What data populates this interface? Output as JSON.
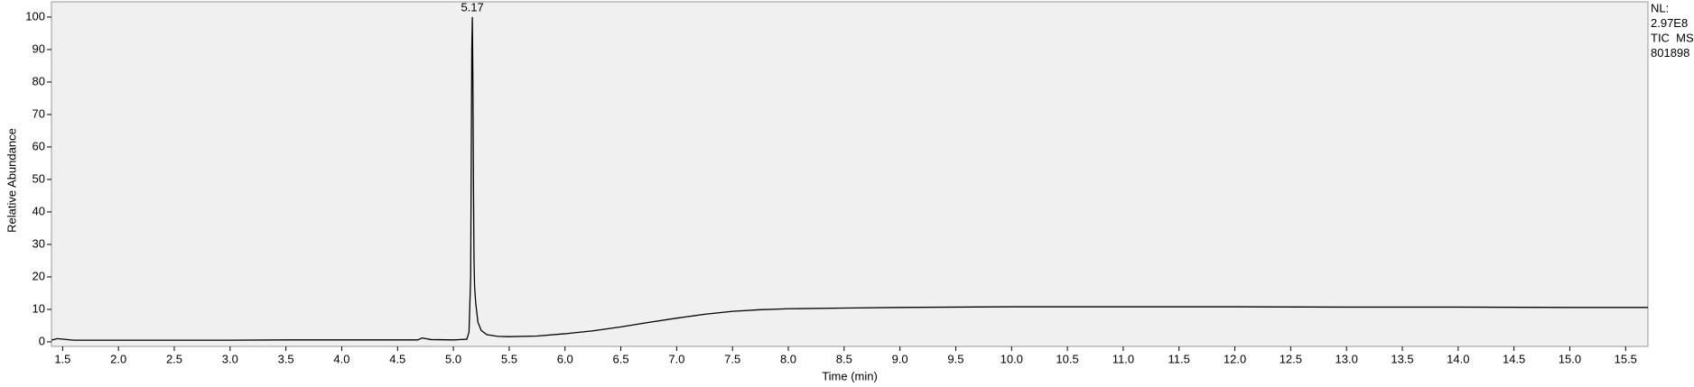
{
  "chart_data": {
    "type": "line",
    "xlabel": "Time (min)",
    "ylabel": "Relative Abundance",
    "annotations": [
      {
        "text": "5.17",
        "x": 5.17,
        "y": 100
      }
    ],
    "info": [
      "NL:",
      "2.97E8",
      "TIC  MS",
      "801898"
    ],
    "color": "#000000",
    "x": [
      1.4,
      1.45,
      1.6,
      2.0,
      2.5,
      3.0,
      3.5,
      4.0,
      4.5,
      4.68,
      4.72,
      4.8,
      5.0,
      5.12,
      5.14,
      5.155,
      5.165,
      5.17,
      5.175,
      5.18,
      5.185,
      5.19,
      5.2,
      5.22,
      5.25,
      5.3,
      5.4,
      5.5,
      5.75,
      6.0,
      6.25,
      6.5,
      6.75,
      7.0,
      7.25,
      7.5,
      7.75,
      8.0,
      8.5,
      9.0,
      9.5,
      10.0,
      11.0,
      12.0,
      13.0,
      14.0,
      15.0,
      15.7
    ],
    "values": [
      0.5,
      1.0,
      0.5,
      0.5,
      0.5,
      0.5,
      0.6,
      0.6,
      0.6,
      0.6,
      1.2,
      0.7,
      0.6,
      0.8,
      3,
      20,
      90,
      100,
      80,
      48,
      25,
      17,
      12,
      6,
      3.5,
      2.2,
      1.7,
      1.6,
      1.8,
      2.5,
      3.4,
      4.6,
      6.0,
      7.3,
      8.5,
      9.4,
      9.9,
      10.2,
      10.4,
      10.6,
      10.7,
      10.8,
      10.8,
      10.8,
      10.7,
      10.7,
      10.6,
      10.6
    ],
    "xlim": [
      1.4,
      15.7
    ],
    "ylim": [
      -1.4,
      104.7
    ],
    "xticks": [
      1.5,
      {
        "value": 2,
        "label": "2.0"
      },
      2.5,
      {
        "value": 3,
        "label": "3.0"
      },
      3.5,
      {
        "value": 4,
        "label": "4.0"
      },
      4.5,
      {
        "value": 5,
        "label": "5.0"
      },
      5.5,
      {
        "value": 6,
        "label": "6.0"
      },
      6.5,
      {
        "value": 7,
        "label": "7.0"
      },
      7.5,
      {
        "value": 8,
        "label": "8.0"
      },
      8.5,
      {
        "value": 9,
        "label": "9.0"
      },
      9.5,
      {
        "value": 10,
        "label": "10.0"
      },
      10.5,
      {
        "value": 11,
        "label": "11.0"
      },
      11.5,
      {
        "value": 12,
        "label": "12.0"
      },
      12.5,
      {
        "value": 13,
        "label": "13.0"
      },
      13.5,
      {
        "value": 14,
        "label": "14.0"
      },
      14.5,
      {
        "value": 15,
        "label": "15.0"
      },
      15.5
    ],
    "yticks": [
      0,
      10,
      20,
      30,
      40,
      50,
      60,
      70,
      80,
      90,
      100
    ]
  }
}
